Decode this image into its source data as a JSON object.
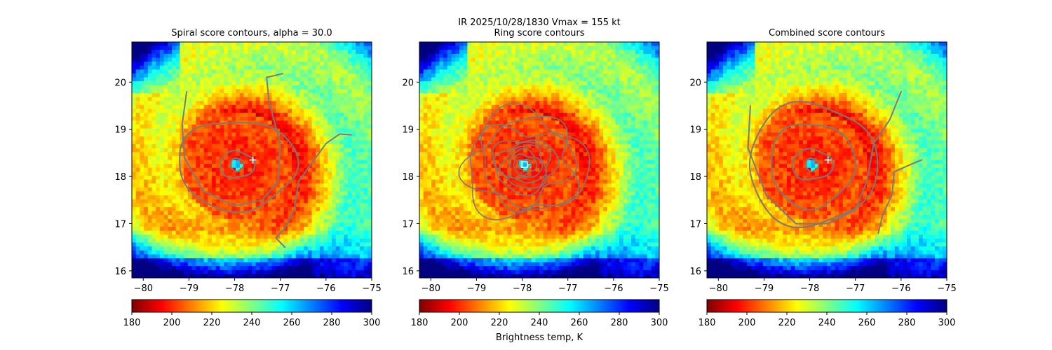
{
  "figure": {
    "suptitle_line1": "IR  2025/10/28/1830    Vmax = 155 kt"
  },
  "colors": {
    "jet": [
      "#800000",
      "#ff0000",
      "#ff8000",
      "#ffff00",
      "#80ff80",
      "#00ffff",
      "#0080ff",
      "#0000ff",
      "#000080"
    ],
    "contour": "#7a7a7a",
    "marker": "#ffffff"
  },
  "chart_data": [
    {
      "type": "heatmap",
      "title": "Spiral score contours, alpha = 30.0",
      "xlim": [
        -80.25,
        -75.0
      ],
      "ylim": [
        15.85,
        20.85
      ],
      "xticks": [
        -80,
        -79,
        -78,
        -77,
        -76,
        -75
      ],
      "yticks": [
        16,
        17,
        18,
        19,
        20
      ],
      "colorbar": {
        "min": 180,
        "max": 300,
        "ticks": [
          180,
          200,
          220,
          240,
          260,
          280,
          300
        ],
        "label": ""
      },
      "storm_center": {
        "lon": -77.95,
        "lat": 18.25
      },
      "marker": {
        "type": "plus",
        "lon": -77.6,
        "lat": 18.35
      }
    },
    {
      "type": "heatmap",
      "title": "Ring score contours",
      "xlim": [
        -80.25,
        -75.0
      ],
      "ylim": [
        15.85,
        20.85
      ],
      "xticks": [
        -80,
        -79,
        -78,
        -77,
        -76,
        -75
      ],
      "yticks": [
        16,
        17,
        18,
        19,
        20
      ],
      "colorbar": {
        "min": 180,
        "max": 300,
        "ticks": [
          180,
          200,
          220,
          240,
          260,
          280,
          300
        ],
        "label": "Brightness temp, K"
      },
      "storm_center": {
        "lon": -77.95,
        "lat": 18.25
      },
      "marker": {
        "type": "square",
        "lon": -77.95,
        "lat": 18.25
      }
    },
    {
      "type": "heatmap",
      "title": "Combined score contours",
      "xlim": [
        -80.25,
        -75.0
      ],
      "ylim": [
        15.85,
        20.85
      ],
      "xticks": [
        -80,
        -79,
        -78,
        -77,
        -76,
        -75
      ],
      "yticks": [
        16,
        17,
        18,
        19,
        20
      ],
      "colorbar": {
        "min": 180,
        "max": 300,
        "ticks": [
          180,
          200,
          220,
          240,
          260,
          280,
          300
        ],
        "label": ""
      },
      "storm_center": {
        "lon": -77.95,
        "lat": 18.25
      },
      "marker": {
        "type": "plus",
        "lon": -77.6,
        "lat": 18.35
      }
    }
  ]
}
